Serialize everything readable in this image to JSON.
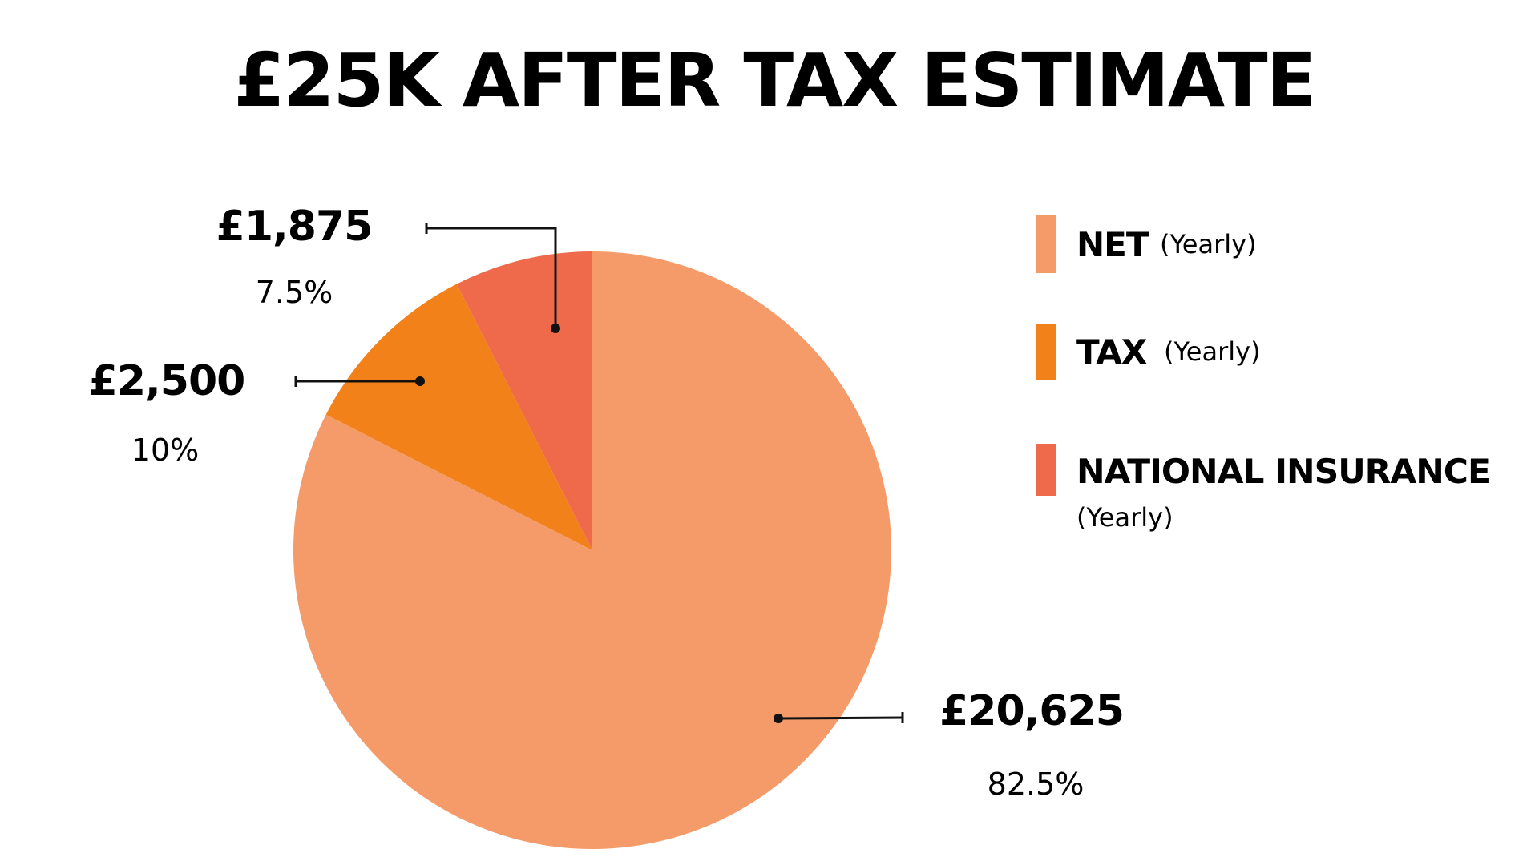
{
  "chart_data": {
    "type": "pie",
    "title": "£25K AFTER TAX ESTIMATE",
    "legend_position": "right",
    "slices": [
      {
        "name": "NET",
        "sub": "(Yearly)",
        "value": 20625,
        "value_label": "£20,625",
        "percent": 82.5,
        "percent_label": "82.5%",
        "color": "#F59B69"
      },
      {
        "name": "TAX",
        "sub": "(Yearly)",
        "value": 2500,
        "value_label": "£2,500",
        "percent": 10,
        "percent_label": "10%",
        "color": "#F28119"
      },
      {
        "name": "NATIONAL INSURANCE",
        "sub": "(Yearly)",
        "value": 1875,
        "value_label": "£1,875",
        "percent": 7.5,
        "percent_label": "7.5%",
        "color": "#EF6A4A"
      }
    ]
  }
}
